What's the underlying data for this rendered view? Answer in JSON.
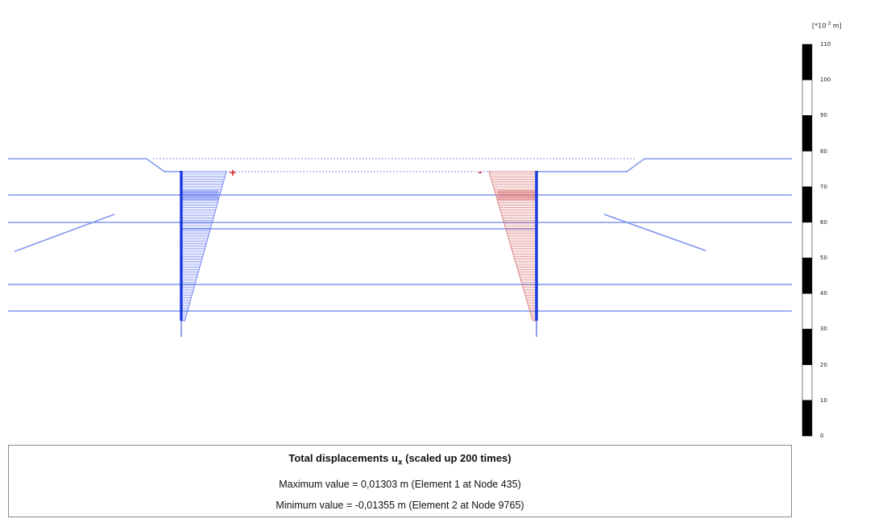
{
  "scale": {
    "unit_prefix": "[*10",
    "unit_exp": "-3",
    "unit_suffix": " m]",
    "ticks": [
      "110",
      "100",
      "90",
      "80",
      "70",
      "60",
      "50",
      "40",
      "30",
      "20",
      "10",
      "0"
    ],
    "min": 0,
    "max": 110,
    "band_colors": [
      "#000000",
      "#ffffff"
    ]
  },
  "diagram": {
    "marker_positive": "+",
    "marker_negative": "-",
    "colors": {
      "soil_line": "#7f95f0",
      "wall": "#1f3ddd",
      "positive_fill": "#7b8ef2",
      "negative_fill": "#e08080",
      "marker": "#e02020",
      "dotted": "#9aa7ee"
    },
    "left_wall": {
      "direction": "negative_x",
      "color": "blue"
    },
    "right_wall": {
      "direction": "positive_x",
      "color": "red"
    }
  },
  "legend": {
    "title_main": "Total displacements u",
    "title_sub": "x",
    "title_rest": " (scaled up 200 times)",
    "max_line": "Maximum value = 0,01303 m (Element 1 at Node 435)",
    "min_line": "Minimum value = -0,01355 m (Element 2 at Node 9765)"
  }
}
